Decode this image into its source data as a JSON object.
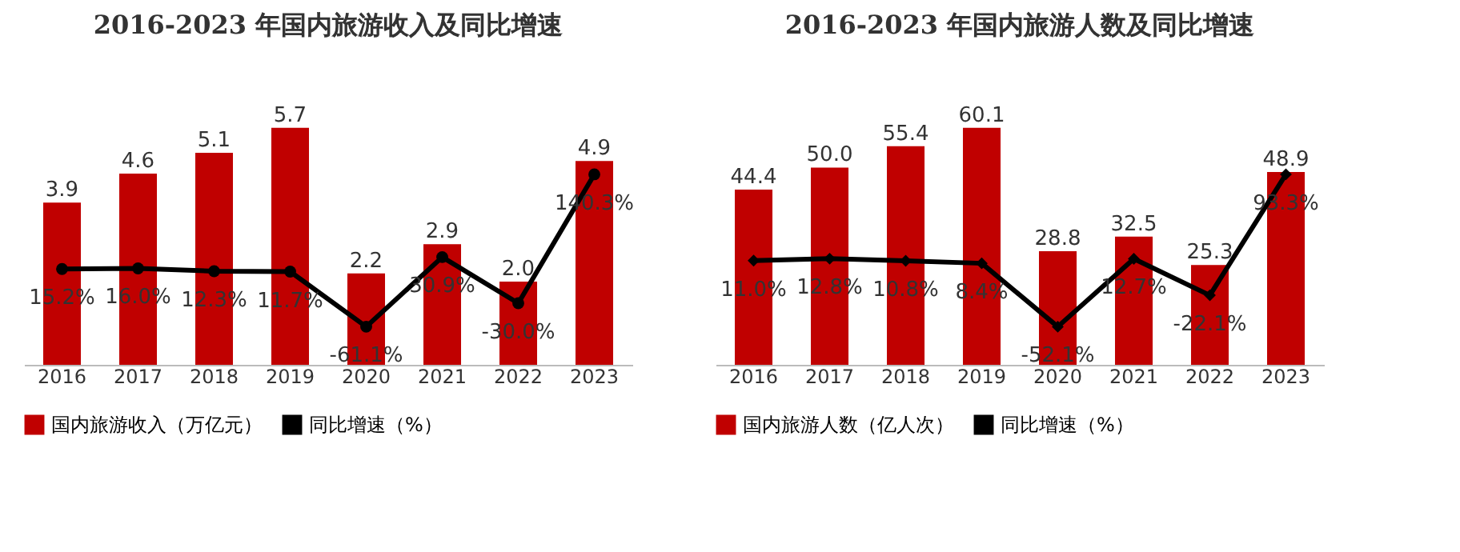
{
  "chart_data": [
    {
      "type": "bar",
      "title": "2016-2023 年国内旅游收入及同比增速",
      "categories": [
        "2016",
        "2017",
        "2018",
        "2019",
        "2020",
        "2021",
        "2022",
        "2023"
      ],
      "series": [
        {
          "name": "国内旅游收入（万亿元）",
          "color": "#c00000",
          "values": [
            3.9,
            4.6,
            5.1,
            5.7,
            2.2,
            2.9,
            2.0,
            4.9
          ],
          "value_labels": [
            "3.9",
            "4.6",
            "5.1",
            "5.7",
            "2.2",
            "2.9",
            "2.0",
            "4.9"
          ]
        },
        {
          "name": "同比增速（%）",
          "type": "line",
          "axis": "y2",
          "color": "#000000",
          "values": [
            15.2,
            16.0,
            12.3,
            11.7,
            -61.1,
            30.9,
            -30.0,
            140.3
          ],
          "value_labels": [
            "15.2%",
            "16.0%",
            "12.3%",
            "11.7%",
            "-61.1%",
            "30.9%",
            "-30.0%",
            "140.3%"
          ]
        }
      ],
      "marker": "circle",
      "legend": "bottom",
      "grid": false,
      "tick_labels": "x"
    },
    {
      "type": "bar",
      "title": "2016-2023 年国内旅游人数及同比增速",
      "categories": [
        "2016",
        "2017",
        "2018",
        "2019",
        "2020",
        "2021",
        "2022",
        "2023"
      ],
      "series": [
        {
          "name": "国内旅游人数（亿人次）",
          "color": "#c00000",
          "values": [
            44.4,
            50.0,
            55.4,
            60.1,
            28.8,
            32.5,
            25.3,
            48.9
          ],
          "value_labels": [
            "44.4",
            "50.0",
            "55.4",
            "60.1",
            "28.8",
            "32.5",
            "25.3",
            "48.9"
          ]
        },
        {
          "name": "同比增速（%）",
          "type": "line",
          "axis": "y2",
          "color": "#000000",
          "values": [
            11.0,
            12.8,
            10.8,
            8.4,
            -52.1,
            12.7,
            -22.1,
            93.3
          ],
          "value_labels": [
            "11.0%",
            "12.8%",
            "10.8%",
            "8.4%",
            "-52.1%",
            "12.7%",
            "-22.1%",
            "93.3%"
          ]
        }
      ],
      "marker": "diamond",
      "legend": "bottom",
      "grid": false,
      "tick_labels": "x"
    }
  ]
}
